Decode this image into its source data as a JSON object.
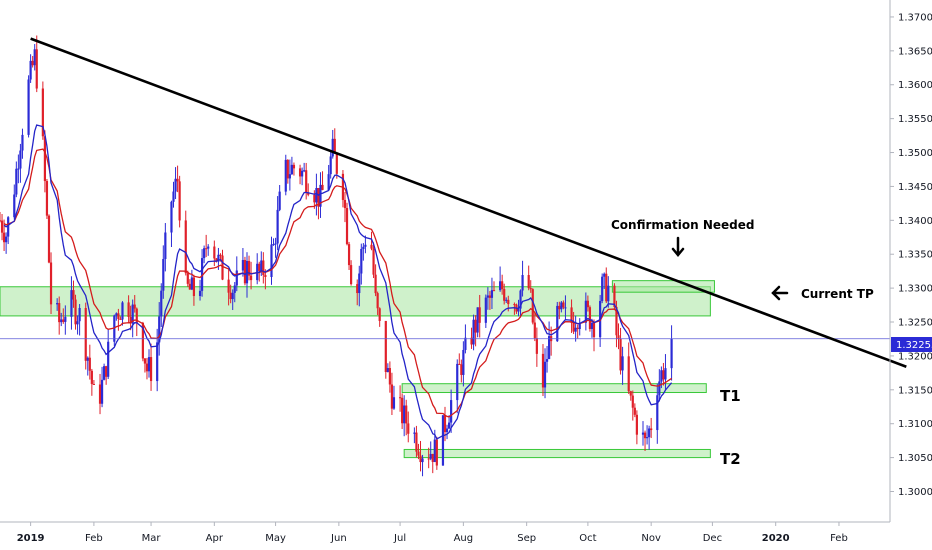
{
  "chart_data": {
    "type": "candlestick",
    "title": "",
    "xlabel": "",
    "ylabel": "",
    "x_ticks": [
      "2019",
      "Feb",
      "Mar",
      "Apr",
      "May",
      "Jun",
      "Jul",
      "Aug",
      "Sep",
      "Oct",
      "Nov",
      "Dec",
      "2020",
      "Feb"
    ],
    "y_ticks": [
      "1.37000",
      "1.36500",
      "1.36000",
      "1.35500",
      "1.35000",
      "1.34500",
      "1.34000",
      "1.33500",
      "1.33000",
      "1.32500",
      "1.32000",
      "1.31500",
      "1.31000",
      "1.30500",
      "1.30000"
    ],
    "ylim": [
      1.2955,
      1.3725
    ],
    "xlim": [
      "2018-12-17",
      "2020-02-26"
    ],
    "grid": false,
    "current_price": "1.32253",
    "colors": {
      "up": "#2b2bd6",
      "down": "#e0202a",
      "ma_fast": "#2424c8",
      "ma_slow": "#d41c1c",
      "zone_fill": "#a8e6a0",
      "zone_border": "#38c838",
      "trendline": "#000000",
      "price_line": "#5b5bd6"
    },
    "annotations": {
      "confirmation": "Confirmation Needed",
      "current_tp": "Current TP",
      "t1": "T1",
      "t2": "T2"
    },
    "trendline": [
      [
        "2019-01-01",
        1.3668
      ],
      [
        "2020-03-05",
        1.3184
      ]
    ],
    "zones": [
      {
        "name": "resistance",
        "from": "2018-12-17",
        "to": "2019-11-30",
        "low": 1.3259,
        "high": 1.3302
      },
      {
        "name": "current-tp",
        "from": "2019-10-13",
        "to": "2019-12-02",
        "low": 1.3294,
        "high": 1.3311
      },
      {
        "name": "t1",
        "from": "2019-07-02",
        "to": "2019-11-28",
        "low": 1.3146,
        "high": 1.3159
      },
      {
        "name": "t2",
        "from": "2019-07-03",
        "to": "2019-11-30",
        "low": 1.305,
        "high": 1.3062
      }
    ],
    "anchors": [
      [
        "2018-12-17",
        1.34
      ],
      [
        "2018-12-20",
        1.338
      ],
      [
        "2018-12-24",
        1.345
      ],
      [
        "2018-12-27",
        1.352
      ],
      [
        "2018-12-31",
        1.36
      ],
      [
        "2019-01-03",
        1.364
      ],
      [
        "2019-01-06",
        1.356
      ],
      [
        "2019-01-09",
        1.34
      ],
      [
        "2019-01-11",
        1.328
      ],
      [
        "2019-01-15",
        1.325
      ],
      [
        "2019-01-20",
        1.328
      ],
      [
        "2019-01-25",
        1.326
      ],
      [
        "2019-01-29",
        1.32
      ],
      [
        "2019-02-02",
        1.312
      ],
      [
        "2019-02-06",
        1.317
      ],
      [
        "2019-02-11",
        1.326
      ],
      [
        "2019-02-17",
        1.328
      ],
      [
        "2019-02-23",
        1.325
      ],
      [
        "2019-02-27",
        1.318
      ],
      [
        "2019-03-03",
        1.318
      ],
      [
        "2019-03-06",
        1.33
      ],
      [
        "2019-03-10",
        1.342
      ],
      [
        "2019-03-14",
        1.346
      ],
      [
        "2019-03-18",
        1.33
      ],
      [
        "2019-03-24",
        1.329
      ],
      [
        "2019-03-29",
        1.338
      ],
      [
        "2019-04-04",
        1.333
      ],
      [
        "2019-04-10",
        1.33
      ],
      [
        "2019-04-17",
        1.333
      ],
      [
        "2019-04-24",
        1.332
      ],
      [
        "2019-04-30",
        1.336
      ],
      [
        "2019-05-05",
        1.347
      ],
      [
        "2019-05-11",
        1.348
      ],
      [
        "2019-05-17",
        1.346
      ],
      [
        "2019-05-23",
        1.343
      ],
      [
        "2019-05-29",
        1.35
      ],
      [
        "2019-06-03",
        1.345
      ],
      [
        "2019-06-06",
        1.335
      ],
      [
        "2019-06-09",
        1.327
      ],
      [
        "2019-06-12",
        1.335
      ],
      [
        "2019-06-16",
        1.34
      ],
      [
        "2019-06-19",
        1.328
      ],
      [
        "2019-06-23",
        1.32
      ],
      [
        "2019-06-28",
        1.313
      ],
      [
        "2019-07-05",
        1.31
      ],
      [
        "2019-07-12",
        1.306
      ],
      [
        "2019-07-19",
        1.306
      ],
      [
        "2019-07-25",
        1.312
      ],
      [
        "2019-07-30",
        1.318
      ],
      [
        "2019-08-06",
        1.324
      ],
      [
        "2019-08-13",
        1.328
      ],
      [
        "2019-08-20",
        1.33
      ],
      [
        "2019-08-27",
        1.328
      ],
      [
        "2019-09-01",
        1.332
      ],
      [
        "2019-09-03",
        1.328
      ],
      [
        "2019-09-06",
        1.319
      ],
      [
        "2019-09-09",
        1.316
      ],
      [
        "2019-09-13",
        1.324
      ],
      [
        "2019-09-18",
        1.326
      ],
      [
        "2019-09-23",
        1.325
      ],
      [
        "2019-09-28",
        1.327
      ],
      [
        "2019-10-04",
        1.325
      ],
      [
        "2019-10-08",
        1.33
      ],
      [
        "2019-10-12",
        1.33
      ],
      [
        "2019-10-15",
        1.323
      ],
      [
        "2019-10-18",
        1.318
      ],
      [
        "2019-10-21",
        1.314
      ],
      [
        "2019-10-25",
        1.31
      ],
      [
        "2019-10-29",
        1.307
      ],
      [
        "2019-11-01",
        1.31
      ],
      [
        "2019-11-04",
        1.316
      ],
      [
        "2019-11-07",
        1.318
      ],
      [
        "2019-11-10",
        1.319
      ],
      [
        "2019-11-11",
        1.3225
      ]
    ]
  }
}
